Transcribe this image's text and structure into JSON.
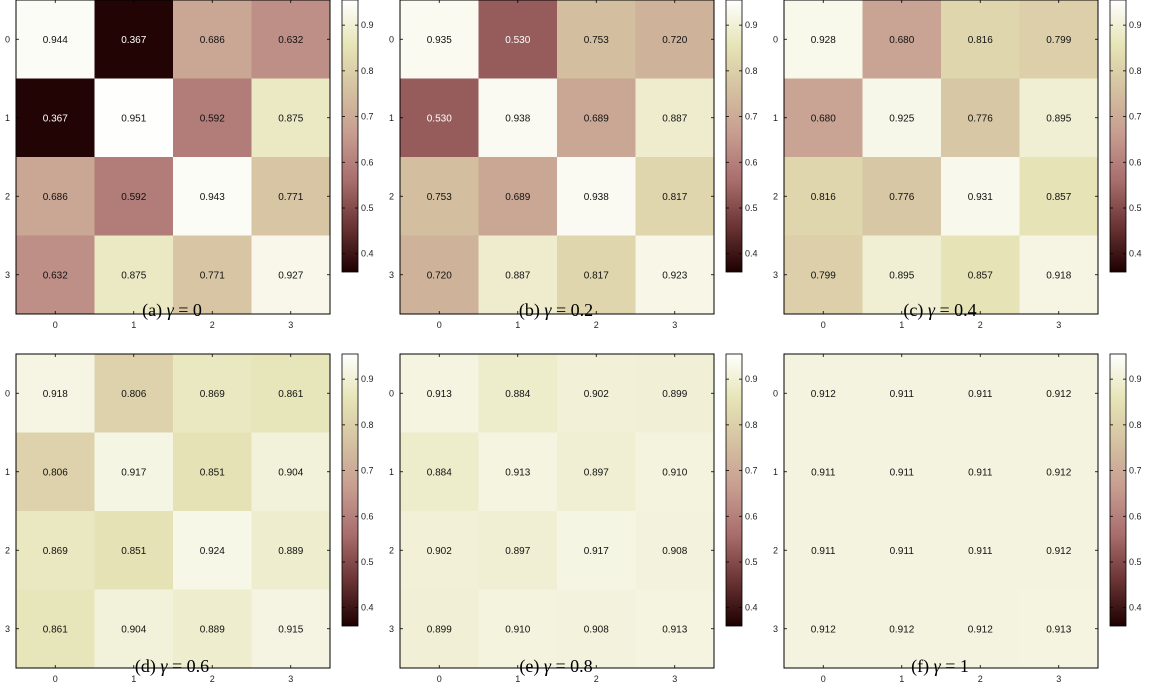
{
  "chart_data": [
    {
      "type": "heatmap",
      "x": [
        "0",
        "1",
        "2",
        "3"
      ],
      "y": [
        "0",
        "1",
        "2",
        "3"
      ],
      "values": [
        [
          0.944,
          0.367,
          0.686,
          0.632
        ],
        [
          0.367,
          0.951,
          0.592,
          0.875
        ],
        [
          0.686,
          0.592,
          0.943,
          0.771
        ],
        [
          0.632,
          0.875,
          0.771,
          0.927
        ]
      ],
      "colorbar_ticks": [
        "0.4",
        "0.5",
        "0.6",
        "0.7",
        "0.8",
        "0.9"
      ],
      "vmin": 0.36,
      "vmax": 0.955,
      "caption_prefix": "(a)",
      "caption_symbol": "γ",
      "caption_eq": "= 0"
    },
    {
      "type": "heatmap",
      "x": [
        "0",
        "1",
        "2",
        "3"
      ],
      "y": [
        "0",
        "1",
        "2",
        "3"
      ],
      "values": [
        [
          0.935,
          0.53,
          0.753,
          0.72
        ],
        [
          0.53,
          0.938,
          0.689,
          0.887
        ],
        [
          0.753,
          0.689,
          0.938,
          0.817
        ],
        [
          0.72,
          0.887,
          0.817,
          0.923
        ]
      ],
      "colorbar_ticks": [
        "0.4",
        "0.5",
        "0.6",
        "0.7",
        "0.8",
        "0.9"
      ],
      "vmin": 0.36,
      "vmax": 0.955,
      "caption_prefix": "(b)",
      "caption_symbol": "γ",
      "caption_eq": "= 0.2"
    },
    {
      "type": "heatmap",
      "x": [
        "0",
        "1",
        "2",
        "3"
      ],
      "y": [
        "0",
        "1",
        "2",
        "3"
      ],
      "values": [
        [
          0.928,
          0.68,
          0.816,
          0.799
        ],
        [
          0.68,
          0.925,
          0.776,
          0.895
        ],
        [
          0.816,
          0.776,
          0.931,
          0.857
        ],
        [
          0.799,
          0.895,
          0.857,
          0.918
        ]
      ],
      "colorbar_ticks": [
        "0.4",
        "0.5",
        "0.6",
        "0.7",
        "0.8",
        "0.9"
      ],
      "vmin": 0.36,
      "vmax": 0.955,
      "caption_prefix": "(c)",
      "caption_symbol": "γ",
      "caption_eq": "= 0.4"
    },
    {
      "type": "heatmap",
      "x": [
        "0",
        "1",
        "2",
        "3"
      ],
      "y": [
        "0",
        "1",
        "2",
        "3"
      ],
      "values": [
        [
          0.918,
          0.806,
          0.869,
          0.861
        ],
        [
          0.806,
          0.917,
          0.851,
          0.904
        ],
        [
          0.869,
          0.851,
          0.924,
          0.889
        ],
        [
          0.861,
          0.904,
          0.889,
          0.915
        ]
      ],
      "colorbar_ticks": [
        "0.4",
        "0.5",
        "0.6",
        "0.7",
        "0.8",
        "0.9"
      ],
      "vmin": 0.36,
      "vmax": 0.955,
      "caption_prefix": "(d)",
      "caption_symbol": "γ",
      "caption_eq": "= 0.6"
    },
    {
      "type": "heatmap",
      "x": [
        "0",
        "1",
        "2",
        "3"
      ],
      "y": [
        "0",
        "1",
        "2",
        "3"
      ],
      "values": [
        [
          0.913,
          0.884,
          0.902,
          0.899
        ],
        [
          0.884,
          0.913,
          0.897,
          0.91
        ],
        [
          0.902,
          0.897,
          0.917,
          0.908
        ],
        [
          0.899,
          0.91,
          0.908,
          0.913
        ]
      ],
      "colorbar_ticks": [
        "0.4",
        "0.5",
        "0.6",
        "0.7",
        "0.8",
        "0.9"
      ],
      "vmin": 0.36,
      "vmax": 0.955,
      "caption_prefix": "(e)",
      "caption_symbol": "γ",
      "caption_eq": "= 0.8"
    },
    {
      "type": "heatmap",
      "x": [
        "0",
        "1",
        "2",
        "3"
      ],
      "y": [
        "0",
        "1",
        "2",
        "3"
      ],
      "values": [
        [
          0.912,
          0.911,
          0.911,
          0.912
        ],
        [
          0.911,
          0.911,
          0.911,
          0.912
        ],
        [
          0.911,
          0.911,
          0.911,
          0.912
        ],
        [
          0.912,
          0.912,
          0.912,
          0.913
        ]
      ],
      "colorbar_ticks": [
        "0.4",
        "0.5",
        "0.6",
        "0.7",
        "0.8",
        "0.9"
      ],
      "vmin": 0.36,
      "vmax": 0.955,
      "caption_prefix": "(f)",
      "caption_symbol": "γ",
      "caption_eq": "= 1"
    }
  ],
  "colormap": {
    "name": "pink",
    "stops": [
      "#1e0000",
      "#6a3434",
      "#a86c6c",
      "#c69b8f",
      "#d4c0a1",
      "#e6e4b6",
      "#ffffff"
    ]
  }
}
